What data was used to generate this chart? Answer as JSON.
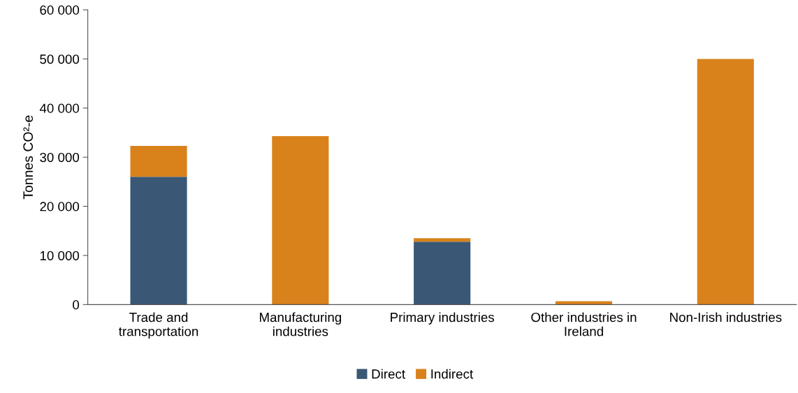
{
  "chart_data": {
    "type": "bar",
    "stacked": true,
    "ylabel": "Tonnes CO²-e",
    "categories": [
      "Trade and\ntransportation",
      "Manufacturing\nindustries",
      "Primary industries",
      "Other industries in\nIreland",
      "Non-Irish industries"
    ],
    "series": [
      {
        "name": "Direct",
        "color": "#3a5876",
        "values": [
          26000,
          0,
          12800,
          0,
          0
        ]
      },
      {
        "name": "Indirect",
        "color": "#d9821c",
        "values": [
          6300,
          34300,
          700,
          700,
          50000
        ]
      }
    ],
    "ylim": [
      0,
      60000
    ],
    "yticks": [
      {
        "value": 0,
        "label": "0"
      },
      {
        "value": 10000,
        "label": "10 000"
      },
      {
        "value": 20000,
        "label": "20 000"
      },
      {
        "value": 30000,
        "label": "30 000"
      },
      {
        "value": 40000,
        "label": "40 000"
      },
      {
        "value": 50000,
        "label": "50 000"
      },
      {
        "value": 60000,
        "label": "60 000"
      }
    ],
    "grid": false,
    "legend": "bottom"
  }
}
